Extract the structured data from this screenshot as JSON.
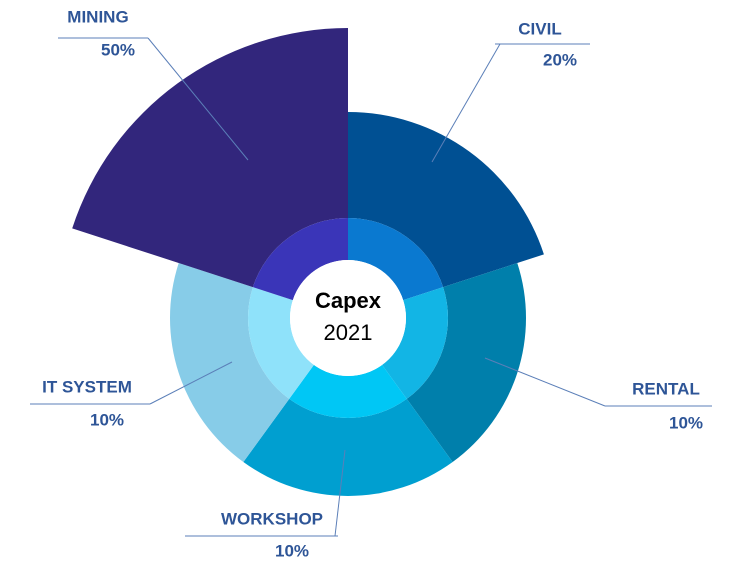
{
  "chart_data": {
    "type": "polar",
    "center_title": "Capex",
    "center_subtitle": "2021",
    "categories": [
      "CIVIL",
      "RENTAL",
      "WORKSHOP",
      "IT SYSTEM",
      "MINING"
    ],
    "values": [
      20,
      10,
      10,
      10,
      50
    ],
    "value_labels": [
      "20%",
      "10%",
      "10%",
      "10%",
      "50%"
    ],
    "colors": [
      "#005093",
      "#007fab",
      "#009fd0",
      "#87cce8",
      "#32267c"
    ],
    "inner_colors": [
      "#0a79d0",
      "#12b5e5",
      "#00c7f5",
      "#8fe2fa",
      "#3a35b8"
    ]
  }
}
